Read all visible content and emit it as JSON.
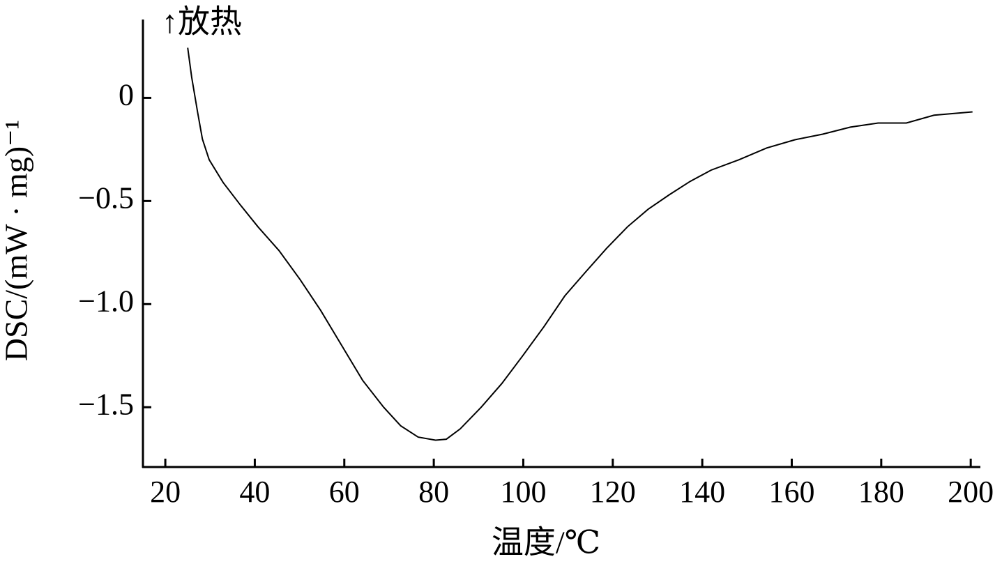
{
  "chart_data": {
    "type": "line",
    "annotation": "↑放热",
    "x_label": "温度/℃",
    "y_label": "DSC/(mW · mg)⁻¹",
    "x": [
      25.0,
      25.9,
      27.2,
      28.3,
      29.8,
      32.9,
      36.8,
      40.7,
      45.4,
      50.1,
      54.7,
      59.4,
      64.1,
      68.8,
      72.6,
      76.5,
      80.4,
      82.8,
      85.9,
      90.6,
      95.2,
      99.9,
      104.6,
      109.3,
      113.9,
      118.6,
      123.3,
      127.9,
      132.6,
      137.3,
      142.0,
      148.2,
      154.4,
      160.7,
      166.9,
      173.1,
      179.3,
      185.6,
      191.8,
      200.4
    ],
    "values": [
      0.243,
      0.1,
      -0.068,
      -0.2,
      -0.3,
      -0.41,
      -0.52,
      -0.625,
      -0.74,
      -0.88,
      -1.03,
      -1.2,
      -1.37,
      -1.5,
      -1.59,
      -1.645,
      -1.66,
      -1.655,
      -1.605,
      -1.5,
      -1.385,
      -1.25,
      -1.11,
      -0.96,
      -0.845,
      -0.73,
      -0.625,
      -0.54,
      -0.47,
      -0.405,
      -0.35,
      -0.3,
      -0.243,
      -0.203,
      -0.176,
      -0.142,
      -0.122,
      -0.122,
      -0.084,
      -0.068
    ],
    "color": "#000000",
    "xlim": [
      15,
      202
    ],
    "ylim": [
      -1.79,
      0.38
    ],
    "xticks": [
      20,
      40,
      60,
      80,
      100,
      120,
      140,
      160,
      180,
      200
    ],
    "yticks": [
      0,
      {
        "value": -0.5,
        "label": "−0.5"
      },
      {
        "value": -1.0,
        "label": "−1.0"
      },
      {
        "value": -1.5,
        "label": "−1.5"
      }
    ],
    "grid": false
  }
}
